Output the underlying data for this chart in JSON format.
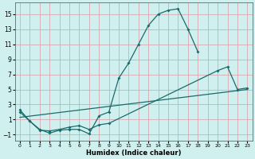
{
  "xlabel": "Humidex (Indice chaleur)",
  "xlim": [
    -0.5,
    23.5
  ],
  "ylim": [
    -1.8,
    16.5
  ],
  "yticks": [
    -1,
    1,
    3,
    5,
    7,
    9,
    11,
    13,
    15
  ],
  "xticks": [
    0,
    1,
    2,
    3,
    4,
    5,
    6,
    7,
    8,
    9,
    10,
    11,
    12,
    13,
    14,
    15,
    16,
    17,
    18,
    19,
    20,
    21,
    22,
    23
  ],
  "bg_color": "#cff0ee",
  "grid_color": "#d8a8b0",
  "line_color": "#1a6b6b",
  "curve1_x": [
    0,
    1,
    2,
    3,
    4,
    5,
    6,
    7,
    8,
    9,
    10,
    11,
    12,
    13,
    14,
    15,
    16,
    17,
    18
  ],
  "curve1_y": [
    2.3,
    0.8,
    -0.3,
    -0.8,
    -0.4,
    -0.3,
    -0.3,
    -0.9,
    1.5,
    2.0,
    6.5,
    8.5,
    11.0,
    13.5,
    15.0,
    15.5,
    15.7,
    13.0,
    10.0
  ],
  "curve2_x": [
    0,
    1,
    2,
    3,
    4,
    5,
    6,
    7,
    8,
    9,
    20,
    21,
    22,
    23
  ],
  "curve2_y": [
    2.0,
    0.8,
    -0.4,
    -0.5,
    -0.3,
    0.0,
    0.2,
    -0.3,
    0.3,
    0.5,
    7.5,
    8.0,
    5.0,
    5.2
  ],
  "line3_x": [
    0,
    23
  ],
  "line3_y": [
    1.3,
    5.0
  ]
}
